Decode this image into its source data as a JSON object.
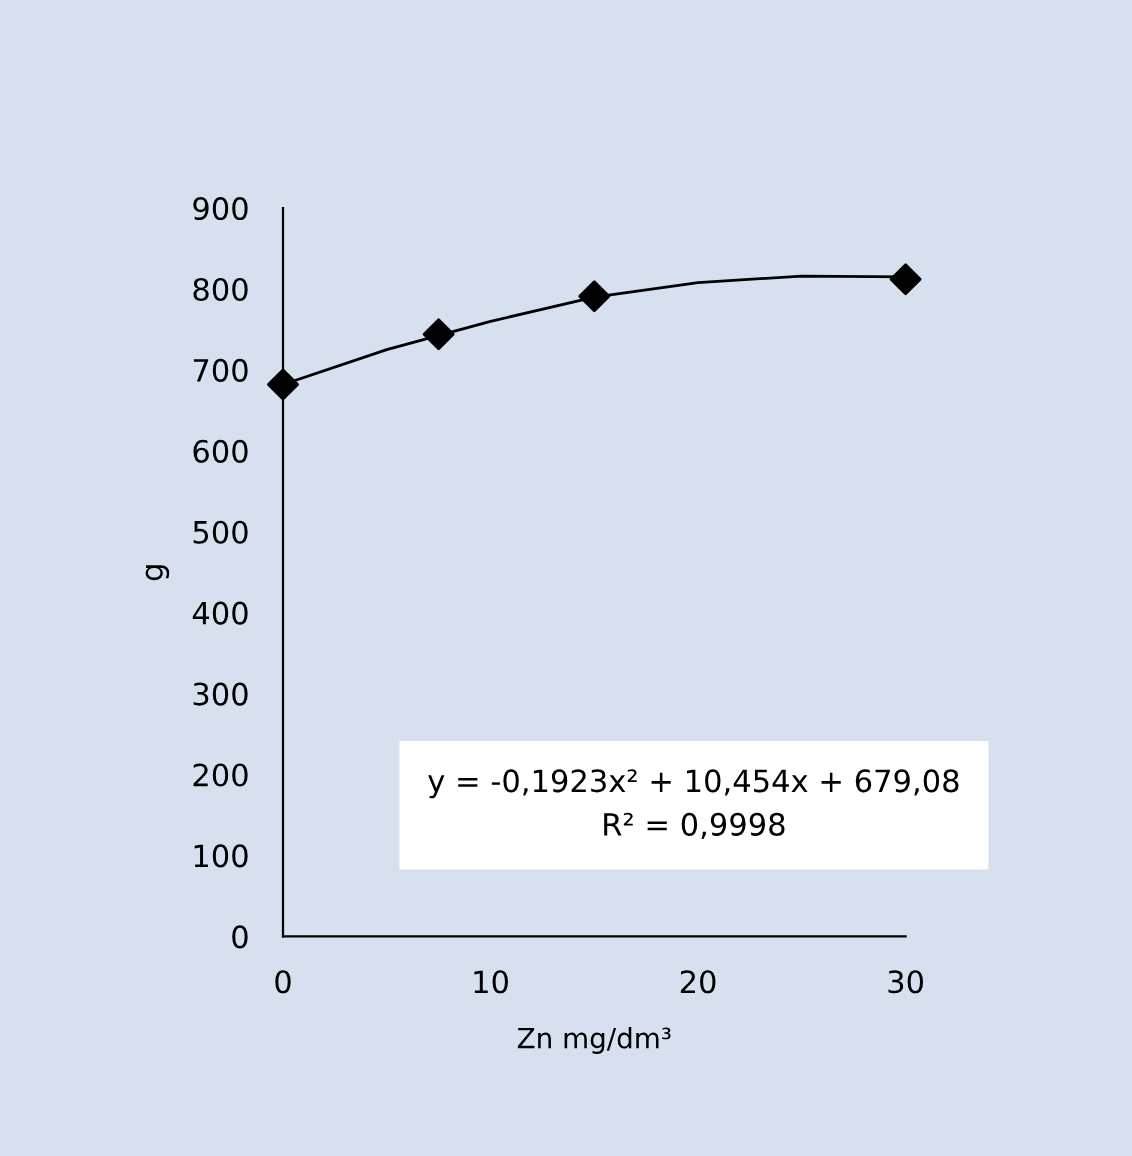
{
  "chart_data": {
    "type": "scatter",
    "xlabel": "Zn mg/dm³",
    "ylabel": "g",
    "x": [
      0,
      7.5,
      15,
      30
    ],
    "series": [
      {
        "color": "#000000",
        "marker": "diamond",
        "values": [
          682,
          744,
          791,
          812
        ]
      },
      {
        "type": "line",
        "color": "#000000",
        "marker": "none",
        "x": [
          0,
          5,
          10,
          15,
          20,
          25,
          30
        ],
        "values": [
          682,
          725,
          760,
          790,
          808,
          816,
          815
        ]
      }
    ],
    "xlim": [
      0,
      30
    ],
    "xticks": [
      0,
      10,
      20,
      30
    ],
    "ylim": [
      0,
      900
    ],
    "yticks": [
      0,
      100,
      200,
      300,
      400,
      500,
      600,
      700,
      800,
      900
    ],
    "grid": false,
    "legend": false,
    "annotations": [
      "y = -0,1923x² + 10,454x + 679,08\nR² = 0,9998"
    ]
  }
}
